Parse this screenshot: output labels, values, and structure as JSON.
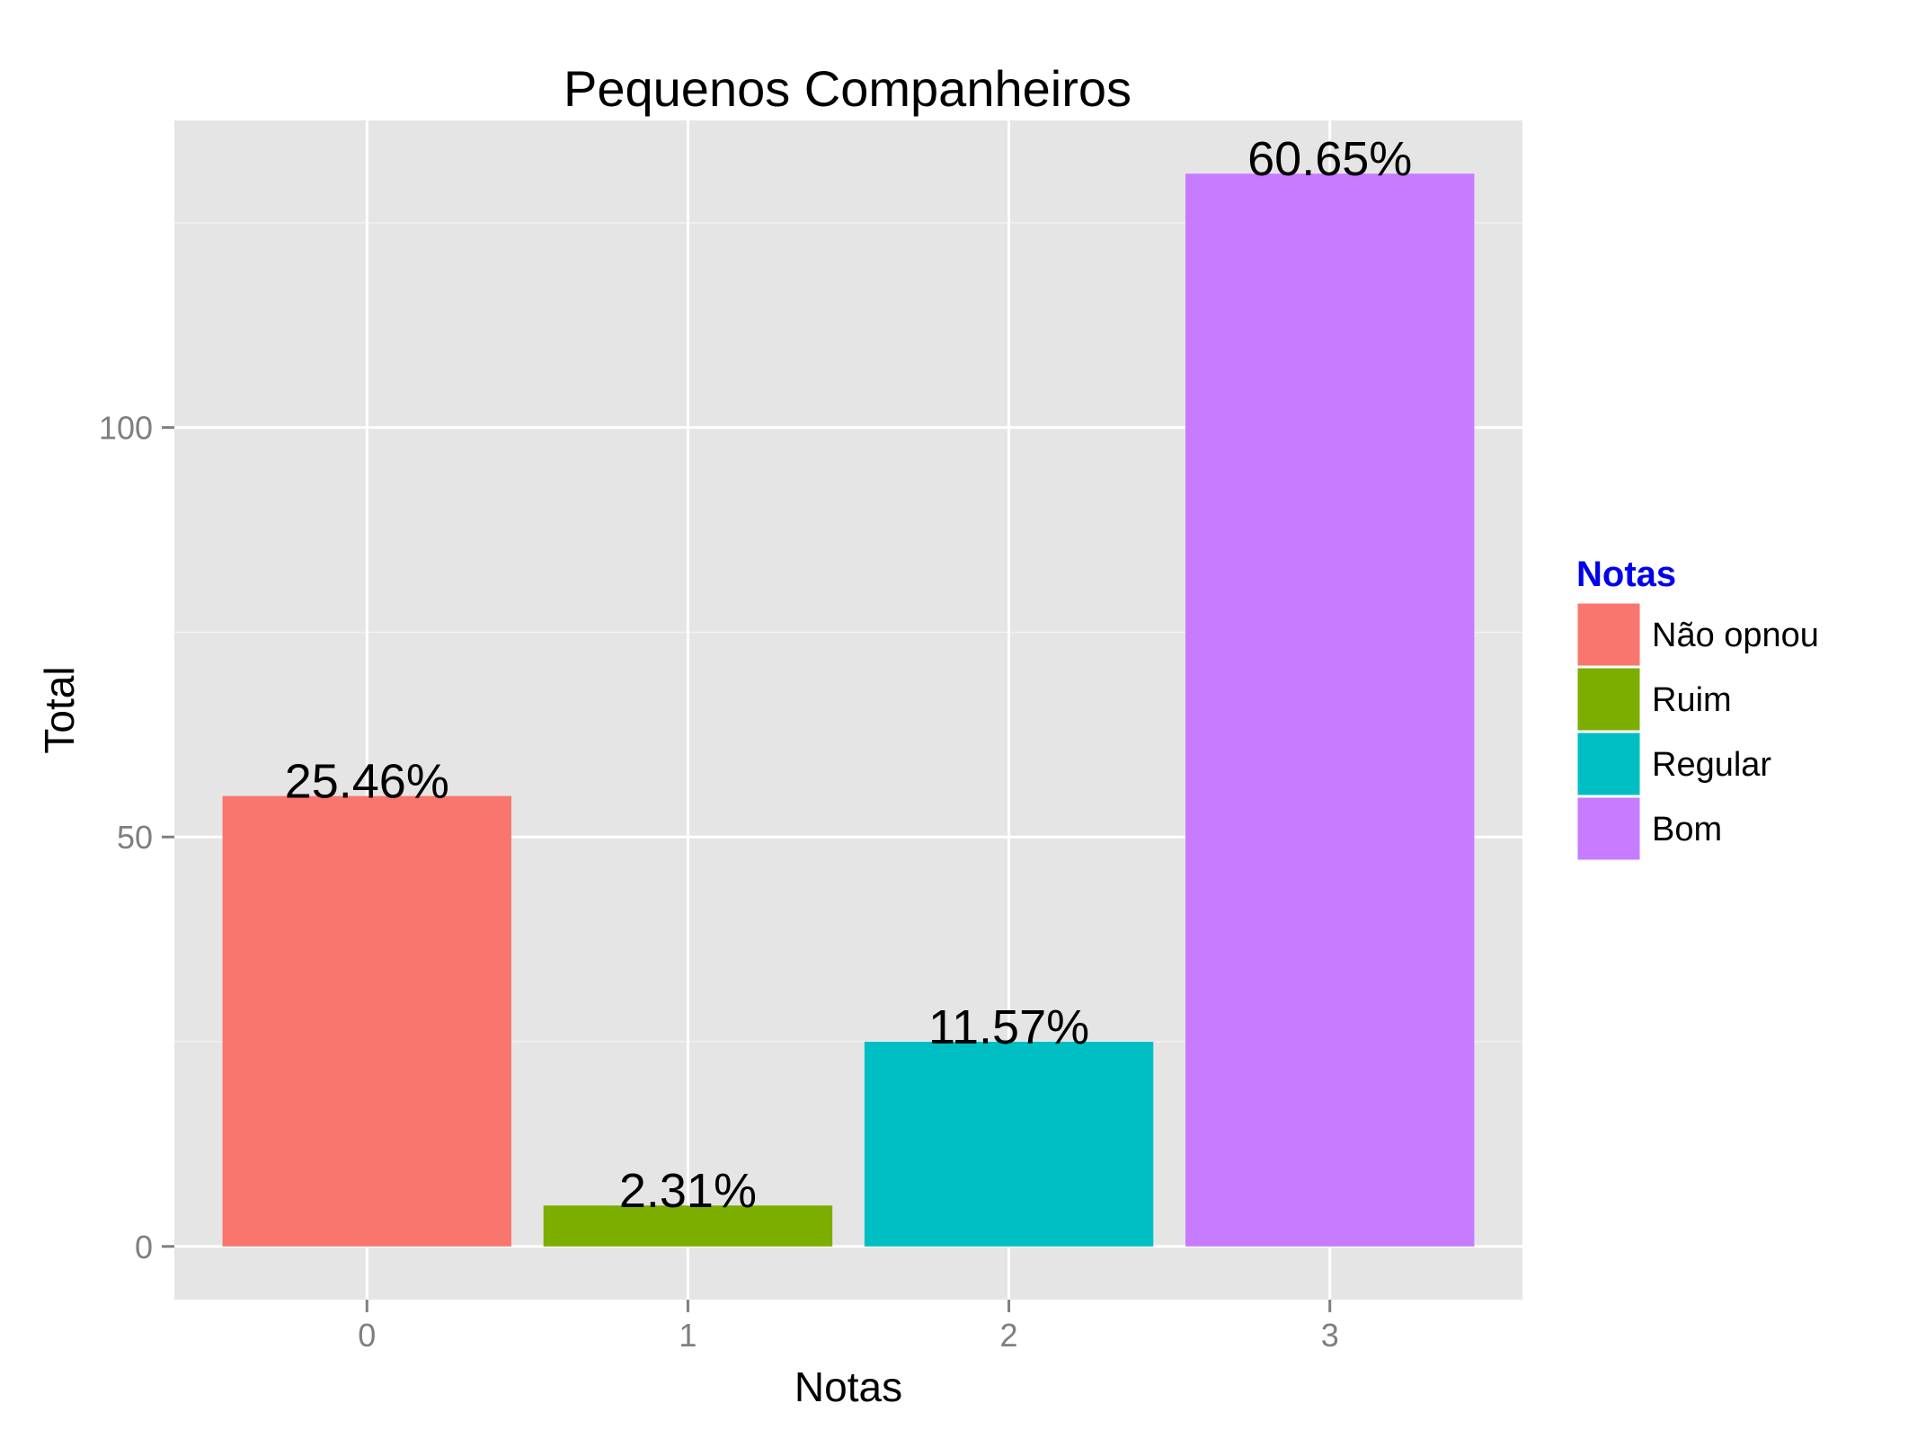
{
  "chart_data": {
    "type": "bar",
    "title": "Pequenos Companheiros",
    "xlabel": "Notas",
    "ylabel": "Total",
    "categories": [
      "0",
      "1",
      "2",
      "3"
    ],
    "values": [
      55,
      5,
      25,
      131
    ],
    "bar_labels": [
      "25.46%",
      "2.31%",
      "11.57%",
      "60.65%"
    ],
    "colors": [
      "#f8766d",
      "#7cae00",
      "#00bfc4",
      "#c77cff"
    ],
    "yticks": [
      0,
      50,
      100
    ],
    "ylim": [
      -6.5,
      137.5
    ],
    "grid": true,
    "panel_background": "#e5e5e5",
    "legend": {
      "title": "Notas",
      "title_color": "#0000ee",
      "position": "right",
      "items": [
        {
          "label": "Não opnou",
          "color": "#f8766d"
        },
        {
          "label": "Ruim",
          "color": "#7cae00"
        },
        {
          "label": "Regular",
          "color": "#00bfc4"
        },
        {
          "label": "Bom",
          "color": "#c77cff"
        }
      ]
    }
  }
}
